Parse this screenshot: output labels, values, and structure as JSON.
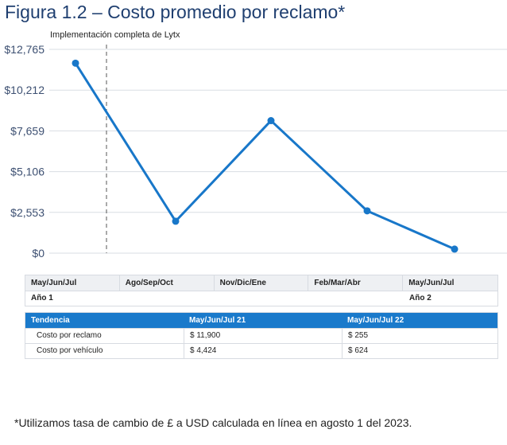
{
  "title": "Figura 1.2 – Costo promedio por reclamo*",
  "chart_data": {
    "type": "line",
    "categories": [
      "May/Jun/Jul",
      "Ago/Sep/Oct",
      "Nov/Dic/Ene",
      "Feb/Mar/Abr",
      "May/Jun/Jul"
    ],
    "values": [
      11900,
      2000,
      8300,
      2650,
      255
    ],
    "ylim": [
      0,
      12765
    ],
    "yticks": [
      "$12,765",
      "$10,212",
      "$7,659",
      "$5,106",
      "$2,553",
      "$0"
    ],
    "ytick_values": [
      12765,
      10212,
      7659,
      5106,
      2553,
      0
    ],
    "annotation": "Implementación completa de Lytx",
    "line_color": "#1877c9",
    "grid": true
  },
  "periods": {
    "headers": [
      "May/Jun/Jul",
      "Ago/Sep/Oct",
      "Nov/Dic/Ene",
      "Feb/Mar/Abr",
      "May/Jun/Jul"
    ],
    "year1": "Año 1",
    "year2": "Año 2"
  },
  "trend_table": {
    "headers": [
      "Tendencia",
      "May/Jun/Jul 21",
      "May/Jun/Jul 22"
    ],
    "rows": [
      [
        "Costo por reclamo",
        "$ 11,900",
        "$ 255"
      ],
      [
        "Costo por vehículo",
        "$ 4,424",
        "$ 624"
      ]
    ],
    "header_color": "#1a7acb"
  },
  "footnote": "*Utilizamos tasa de cambio de £ a USD calculada en línea en agosto 1 del 2023."
}
